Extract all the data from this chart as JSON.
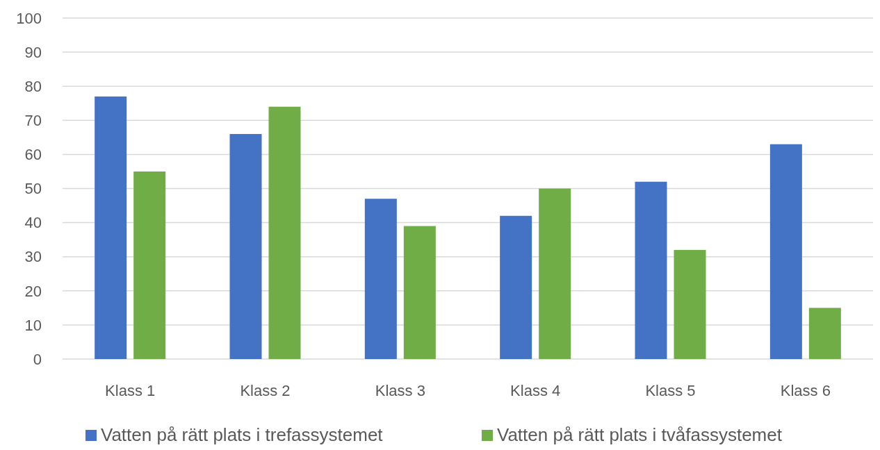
{
  "chart_data": {
    "type": "bar",
    "categories": [
      "Klass 1",
      "Klass 2",
      "Klass 3",
      "Klass 4",
      "Klass 5",
      "Klass 6"
    ],
    "series": [
      {
        "name": "Vatten på rätt plats i trefassystemet",
        "color": "#4472c4",
        "values": [
          77,
          66,
          47,
          42,
          52,
          63
        ]
      },
      {
        "name": "Vatten på rätt plats i tvåfassystemet",
        "color": "#70ad47",
        "values": [
          55,
          74,
          39,
          50,
          32,
          15
        ]
      }
    ],
    "ylim": [
      0,
      100
    ],
    "yticks": [
      0,
      10,
      20,
      30,
      40,
      50,
      60,
      70,
      80,
      90,
      100
    ],
    "grid": "y",
    "legend": "bottom"
  }
}
